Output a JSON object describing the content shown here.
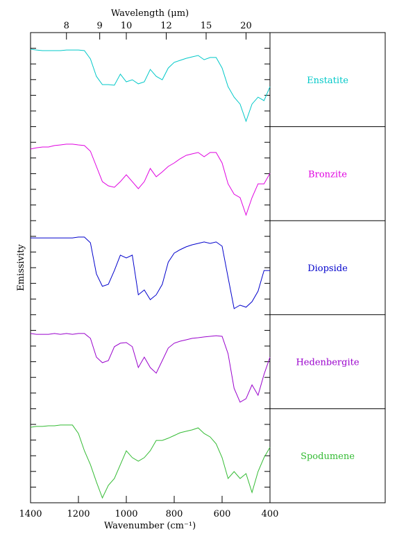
{
  "chart_data": {
    "type": "line",
    "xlabel": "Wavenumber (cm⁻¹)",
    "x2label": "Wavelength (μm)",
    "ylabel": "Emissivity",
    "xlim": [
      1400,
      400
    ],
    "xticks": [
      1400,
      1200,
      1000,
      800,
      600,
      400
    ],
    "x2ticks": [
      8,
      9,
      10,
      12,
      15,
      20
    ],
    "ylim": [
      0,
      30
    ],
    "yticks": [
      0,
      1,
      2,
      3,
      4,
      5,
      6,
      7,
      8,
      9,
      10,
      11,
      12,
      13,
      14,
      15,
      16,
      17,
      18,
      19,
      20,
      21,
      22,
      23,
      24,
      25,
      26,
      27,
      28,
      29,
      30
    ],
    "x": [
      1400,
      1375,
      1350,
      1325,
      1300,
      1275,
      1250,
      1225,
      1200,
      1175,
      1150,
      1125,
      1100,
      1075,
      1050,
      1025,
      1000,
      975,
      950,
      925,
      900,
      875,
      850,
      825,
      800,
      775,
      750,
      725,
      700,
      675,
      650,
      625,
      600,
      575,
      550,
      525,
      500,
      475,
      450,
      425,
      400
    ],
    "series": [
      {
        "name": "Enstatite",
        "color": "#00c8c8",
        "values": [
          28.94,
          28.89,
          28.85,
          28.85,
          28.85,
          28.85,
          28.89,
          28.89,
          28.89,
          28.85,
          28.32,
          27.21,
          26.68,
          26.68,
          26.64,
          27.35,
          26.86,
          26.99,
          26.73,
          26.86,
          27.65,
          27.21,
          26.99,
          27.74,
          28.1,
          28.23,
          28.36,
          28.45,
          28.54,
          28.27,
          28.41,
          28.41,
          27.74,
          26.55,
          25.88,
          25.44,
          24.34,
          25.44,
          25.88,
          25.66,
          26.55
        ]
      },
      {
        "name": "Bronzite",
        "color": "#e000e0",
        "values": [
          22.57,
          22.65,
          22.7,
          22.7,
          22.79,
          22.83,
          22.88,
          22.88,
          22.83,
          22.79,
          22.43,
          21.46,
          20.49,
          20.22,
          20.13,
          20.49,
          20.93,
          20.49,
          20.04,
          20.49,
          21.33,
          20.8,
          21.11,
          21.46,
          21.68,
          21.95,
          22.17,
          22.26,
          22.35,
          22.08,
          22.35,
          22.35,
          21.68,
          20.35,
          19.69,
          19.47,
          18.36,
          19.47,
          20.35,
          20.35,
          21.02
        ]
      },
      {
        "name": "Diopside",
        "color": "#0000cc",
        "values": [
          16.9,
          16.9,
          16.9,
          16.9,
          16.9,
          16.9,
          16.9,
          16.9,
          16.95,
          16.95,
          16.59,
          14.6,
          13.81,
          13.94,
          14.82,
          15.8,
          15.62,
          15.8,
          13.27,
          13.58,
          12.96,
          13.27,
          13.94,
          15.35,
          15.93,
          16.15,
          16.33,
          16.46,
          16.55,
          16.64,
          16.55,
          16.64,
          16.37,
          14.38,
          12.39,
          12.61,
          12.48,
          12.83,
          13.5,
          14.82,
          14.82
        ]
      },
      {
        "name": "Hedenbergite",
        "color": "#9900cc",
        "values": [
          10.8,
          10.75,
          10.75,
          10.75,
          10.8,
          10.75,
          10.8,
          10.75,
          10.8,
          10.8,
          10.49,
          9.29,
          8.94,
          9.07,
          9.96,
          10.18,
          10.22,
          9.96,
          8.63,
          9.29,
          8.63,
          8.27,
          9.07,
          9.87,
          10.18,
          10.31,
          10.4,
          10.49,
          10.53,
          10.58,
          10.62,
          10.66,
          10.62,
          9.51,
          7.3,
          6.42,
          6.64,
          7.52,
          6.86,
          8.19,
          9.29
        ]
      },
      {
        "name": "Spodumene",
        "color": "#33bb33",
        "values": [
          4.82,
          4.87,
          4.87,
          4.91,
          4.91,
          4.96,
          4.96,
          4.96,
          4.42,
          3.32,
          2.43,
          1.33,
          0.31,
          1.11,
          1.55,
          2.43,
          3.32,
          2.88,
          2.65,
          2.88,
          3.32,
          3.98,
          3.98,
          4.12,
          4.29,
          4.47,
          4.56,
          4.65,
          4.78,
          4.42,
          4.2,
          3.76,
          2.88,
          1.55,
          1.99,
          1.55,
          1.86,
          0.66,
          1.99,
          2.88,
          3.54
        ]
      }
    ]
  }
}
